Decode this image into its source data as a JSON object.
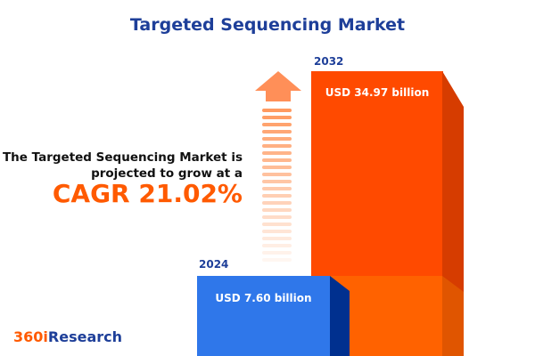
{
  "title": "Targeted Sequencing Market",
  "description_line1": "The Targeted Sequencing Market is",
  "description_line2": "projected to grow at a",
  "cagr": "CAGR 21.02%",
  "logo": {
    "part1": "360i",
    "part2": "Research"
  },
  "colors": {
    "title": "#1e3f99",
    "accent": "#ff5a00",
    "bar_2024": "#2f77ea",
    "bar_2032": "#ff4a00"
  },
  "chart_data": {
    "type": "bar",
    "categories": [
      "2024",
      "2032"
    ],
    "values": [
      7.6,
      34.97
    ],
    "data_labels": [
      "USD 7.60 billion",
      "USD 34.97 billion"
    ],
    "unit": "USD billion",
    "title": "Targeted Sequencing Market"
  }
}
